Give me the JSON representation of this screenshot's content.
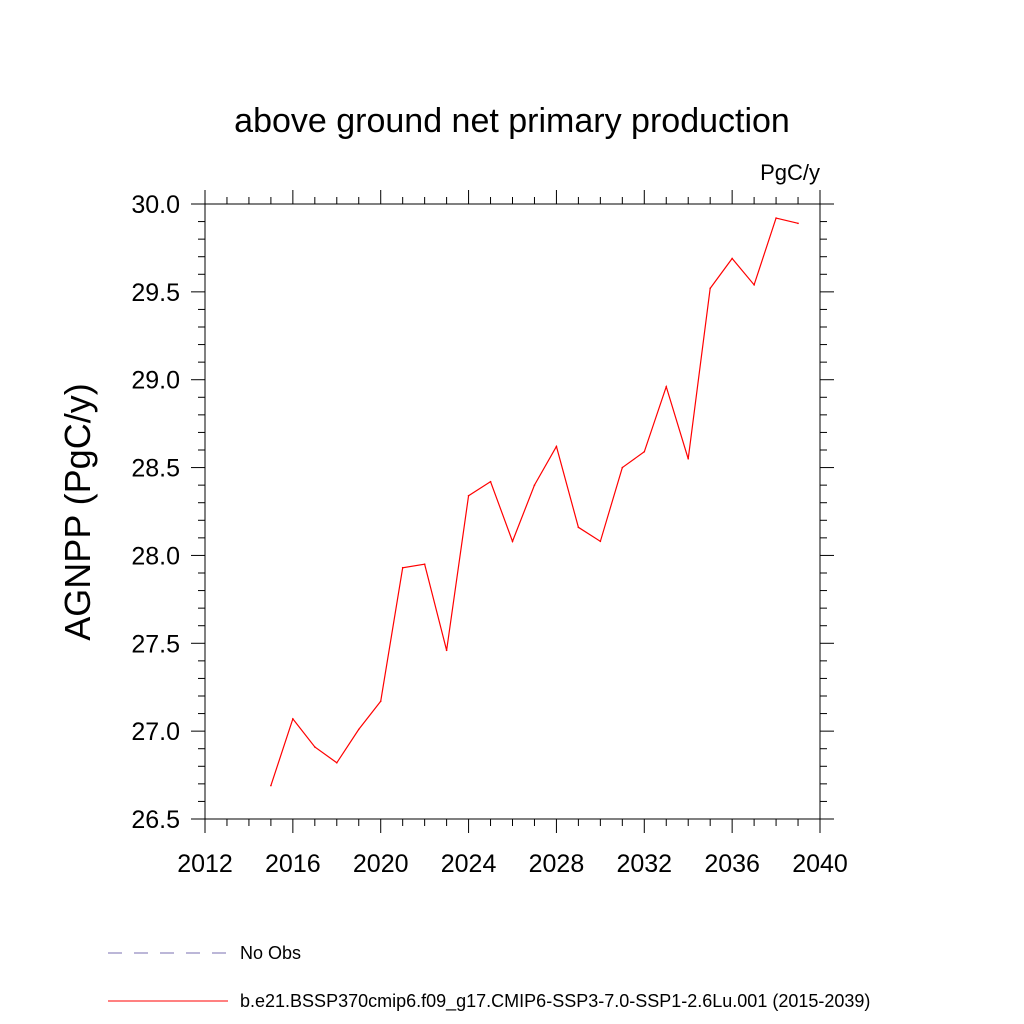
{
  "chart_data": {
    "type": "line",
    "title": "above ground net primary production",
    "units_label": "PgC/y",
    "ylabel": "AGNPP  (PgC/y)",
    "xlabel": "",
    "xlim": [
      2012,
      2040
    ],
    "ylim": [
      26.5,
      30.0
    ],
    "x_ticks": [
      2012,
      2016,
      2020,
      2024,
      2028,
      2032,
      2036,
      2040
    ],
    "y_ticks": [
      "26.5",
      "27.0",
      "27.5",
      "28.0",
      "28.5",
      "29.0",
      "29.5",
      "30.0"
    ],
    "grid": false,
    "legend_position": "bottom",
    "series": [
      {
        "name": "b.e21.BSSP370cmip6.f09_g17.CMIP6-SSP3-7.0-SSP1-2.6Lu.001 (2015-2039)",
        "color": "#ff0000",
        "style": "solid",
        "x": [
          2015,
          2016,
          2017,
          2018,
          2019,
          2020,
          2021,
          2022,
          2023,
          2024,
          2025,
          2026,
          2027,
          2028,
          2029,
          2030,
          2031,
          2032,
          2033,
          2034,
          2035,
          2036,
          2037,
          2038,
          2039
        ],
        "values": [
          26.69,
          27.07,
          26.91,
          26.82,
          27.01,
          27.17,
          27.93,
          27.95,
          27.46,
          28.34,
          28.42,
          28.08,
          28.4,
          28.62,
          28.16,
          28.08,
          28.5,
          28.59,
          28.96,
          28.55,
          29.52,
          29.69,
          29.54,
          29.92,
          29.89
        ]
      }
    ],
    "legend": [
      {
        "label": "No Obs",
        "color": "#7a6fb0",
        "style": "dashed"
      },
      {
        "label": "b.e21.BSSP370cmip6.f09_g17.CMIP6-SSP3-7.0-SSP1-2.6Lu.001 (2015-2039)",
        "color": "#ff0000",
        "style": "solid"
      }
    ]
  }
}
